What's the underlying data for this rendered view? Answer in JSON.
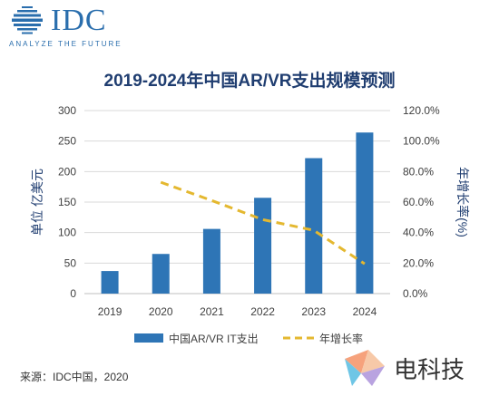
{
  "logo": {
    "brand": "IDC",
    "tagline": "ANALYZE THE FUTURE"
  },
  "chart_data": {
    "type": "bar",
    "title": "2019-2024年中国AR/VR支出规模预测",
    "categories": [
      "2019",
      "2020",
      "2021",
      "2022",
      "2023",
      "2024"
    ],
    "series": [
      {
        "name": "中国AR/VR IT支出",
        "type": "bar",
        "axis": "left",
        "values": [
          37,
          65,
          106,
          157,
          222,
          264
        ]
      },
      {
        "name": "年增长率",
        "type": "line",
        "style": "dashed",
        "axis": "right",
        "values": [
          null,
          73.0,
          61.0,
          48.5,
          41.5,
          19.5
        ]
      }
    ],
    "ylabel": "单位 亿美元",
    "ylabel_right": "年增长率(%)",
    "ylim": [
      0,
      300
    ],
    "yticks": [
      "0",
      "50",
      "100",
      "150",
      "200",
      "250",
      "300"
    ],
    "ylim_right": [
      0,
      120
    ],
    "yticks_right": [
      "0.0%",
      "20.0%",
      "40.0%",
      "60.0%",
      "80.0%",
      "100.0%",
      "120.0%"
    ],
    "grid": true,
    "legend": "bottom",
    "colors": {
      "bar": "#2e75b6",
      "line": "#e4b830"
    }
  },
  "source": "来源：IDC中国，2020",
  "watermark": {
    "text": "电科技"
  }
}
